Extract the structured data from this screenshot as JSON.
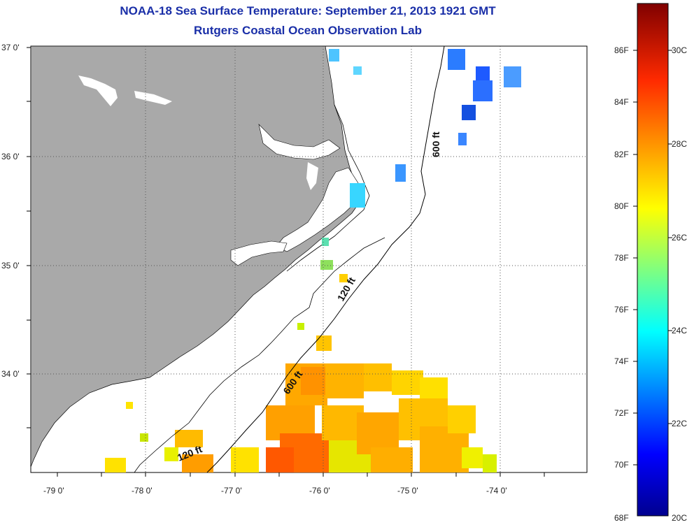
{
  "title": {
    "line1": "NOAA-18 Sea Surface Temperature:  September 21, 2013 1921 GMT",
    "line2": "Rutgers Coastal Ocean Observation Lab"
  },
  "axes": {
    "lat_labels": [
      "37 0'",
      "36 0'",
      "35 0'",
      "34 0'"
    ],
    "lon_labels": [
      "-79 0'",
      "-78 0'",
      "-77 0'",
      "-76 0'",
      "-75 0'",
      "-74 0'"
    ]
  },
  "contours": {
    "label_600_top": "600 ft",
    "label_120_mid": "120 ft",
    "label_600_bottom": "600 ft",
    "label_120_bottom": "120 ft"
  },
  "colorbar": {
    "fahrenheit": [
      "86F",
      "84F",
      "82F",
      "80F",
      "78F",
      "76F",
      "74F",
      "72F",
      "70F",
      "68F"
    ],
    "celsius": [
      "30C",
      "28C",
      "26C",
      "24C",
      "22C",
      "20C"
    ]
  },
  "colors": {
    "land": "#a9a9a9",
    "title": "#1a2fa8"
  }
}
